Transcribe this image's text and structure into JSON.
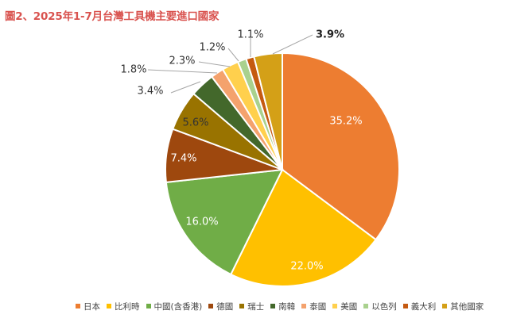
{
  "chart_data": {
    "type": "pie",
    "title": "圖2、2025年1-7月台灣工具機主要進口國家",
    "slices": [
      {
        "name": "日本",
        "value": 35.2,
        "label": "35.2%",
        "color": "#ed7d31"
      },
      {
        "name": "比利時",
        "value": 22.0,
        "label": "22.0%",
        "color": "#ffc000"
      },
      {
        "name": "中國(含香港)",
        "value": 16.0,
        "label": "16.0%",
        "color": "#70ad47"
      },
      {
        "name": "德國",
        "value": 7.4,
        "label": "7.4%",
        "color": "#9e480e"
      },
      {
        "name": "瑞士",
        "value": 5.6,
        "label": "5.6%",
        "color": "#997300"
      },
      {
        "name": "南韓",
        "value": 3.4,
        "label": "3.4%",
        "color": "#43682b"
      },
      {
        "name": "泰國",
        "value": 1.8,
        "label": "1.8%",
        "color": "#f4a26d"
      },
      {
        "name": "美國",
        "value": 2.3,
        "label": "2.3%",
        "color": "#ffd04d"
      },
      {
        "name": "以色列",
        "value": 1.2,
        "label": "1.2%",
        "color": "#a9d18e"
      },
      {
        "name": "義大利",
        "value": 1.1,
        "label": "1.1%",
        "color": "#c55a11"
      },
      {
        "name": "其他國家",
        "value": 3.9,
        "label": "3.9%",
        "color": "#d4a017"
      }
    ],
    "legend_position": "bottom"
  }
}
